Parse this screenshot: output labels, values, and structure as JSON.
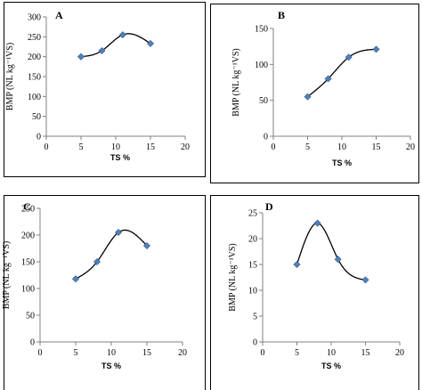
{
  "figure_title": "",
  "chart_data": [
    {
      "type": "scatter",
      "panel_label": "A",
      "x": [
        5,
        8,
        11,
        15
      ],
      "y": [
        200,
        215,
        255,
        233
      ],
      "xlim": [
        0,
        20
      ],
      "ylim": [
        0,
        300
      ],
      "xticks": [
        "0",
        "5",
        "10",
        "15",
        "20"
      ],
      "yticks": [
        "0",
        "50",
        "100",
        "150",
        "200",
        "250",
        "300"
      ],
      "xlabel": "",
      "ylabel": "",
      "trendline": "polynomial",
      "marker_color": "#4f81bd",
      "line_color": "#000000",
      "grid": false
    },
    {
      "type": "scatter",
      "panel_label": "B",
      "x": [
        5,
        8,
        11,
        15
      ],
      "y": [
        55,
        80,
        110,
        121
      ],
      "xlim": [
        0,
        20
      ],
      "ylim": [
        0,
        150
      ],
      "xticks": [
        "0",
        "5",
        "10",
        "15",
        "20"
      ],
      "yticks": [
        "0",
        "50",
        "100",
        "150"
      ],
      "xlabel": "TS %",
      "ylabel": "BMP (NL kg⁻¹VS)",
      "trendline": "polynomial",
      "marker_color": "#4f81bd",
      "line_color": "#000000",
      "grid": false
    },
    {
      "type": "scatter",
      "panel_label": "C",
      "x": [
        5,
        8,
        11,
        15
      ],
      "y": [
        118,
        150,
        205,
        180
      ],
      "xlim": [
        0,
        20
      ],
      "ylim": [
        0,
        250
      ],
      "xticks": [
        "0",
        "5",
        "10",
        "15",
        "20"
      ],
      "yticks": [
        "0",
        "50",
        "100",
        "150",
        "200",
        "250"
      ],
      "xlabel": "TS %",
      "ylabel": "BMP (NL kg⁻¹VS)",
      "trendline": "polynomial",
      "marker_color": "#4f81bd",
      "line_color": "#000000",
      "grid": false
    },
    {
      "type": "scatter",
      "panel_label": "D",
      "x": [
        5,
        8,
        11,
        15
      ],
      "y": [
        15,
        23,
        16,
        12
      ],
      "xlim": [
        0,
        20
      ],
      "ylim": [
        0,
        25
      ],
      "xticks": [
        "0",
        "5",
        "10",
        "15",
        "20"
      ],
      "yticks": [
        "0",
        "5",
        "10",
        "15",
        "20",
        "25"
      ],
      "xlabel": "TS %",
      "ylabel": "BMP (NL kg⁻¹VS)",
      "trendline": "polynomial",
      "marker_color": "#4f81bd",
      "line_color": "#000000",
      "grid": false
    }
  ],
  "extra_labels": {
    "panel_A_xlabel": "TS %",
    "panel_A_ylabel": "BMP (NL kg⁻¹VS)"
  }
}
